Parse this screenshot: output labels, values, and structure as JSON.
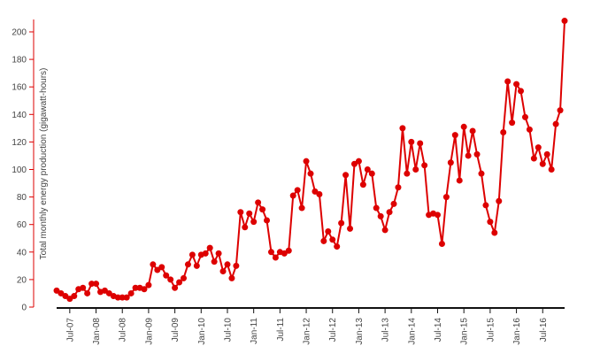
{
  "chart_data": {
    "type": "line",
    "y_label": "Total monthly energy production (gigawatt-hours)",
    "color": "#dd0000",
    "x": [
      "2007-04",
      "2007-05",
      "2007-06",
      "2007-07",
      "2007-08",
      "2007-09",
      "2007-10",
      "2007-11",
      "2007-12",
      "2008-01",
      "2008-02",
      "2008-03",
      "2008-04",
      "2008-05",
      "2008-06",
      "2008-07",
      "2008-08",
      "2008-09",
      "2008-10",
      "2008-11",
      "2008-12",
      "2009-01",
      "2009-02",
      "2009-03",
      "2009-04",
      "2009-05",
      "2009-06",
      "2009-07",
      "2009-08",
      "2009-09",
      "2009-10",
      "2009-11",
      "2009-12",
      "2010-01",
      "2010-02",
      "2010-03",
      "2010-04",
      "2010-05",
      "2010-06",
      "2010-07",
      "2010-08",
      "2010-09",
      "2010-10",
      "2010-11",
      "2010-12",
      "2011-01",
      "2011-02",
      "2011-03",
      "2011-04",
      "2011-05",
      "2011-06",
      "2011-07",
      "2011-08",
      "2011-09",
      "2011-10",
      "2011-11",
      "2011-12",
      "2012-01",
      "2012-02",
      "2012-03",
      "2012-04",
      "2012-05",
      "2012-06",
      "2012-07",
      "2012-08",
      "2012-09",
      "2012-10",
      "2012-11",
      "2012-12",
      "2013-01",
      "2013-02",
      "2013-03",
      "2013-04",
      "2013-05",
      "2013-06",
      "2013-07",
      "2013-08",
      "2013-09",
      "2013-10",
      "2013-11",
      "2013-12",
      "2014-01",
      "2014-02",
      "2014-03",
      "2014-04",
      "2014-05",
      "2014-06",
      "2014-07",
      "2014-08",
      "2014-09",
      "2014-10",
      "2014-11",
      "2014-12",
      "2015-01",
      "2015-02",
      "2015-03",
      "2015-04",
      "2015-05",
      "2015-06",
      "2015-07",
      "2015-08",
      "2015-09",
      "2015-10",
      "2015-11",
      "2015-12",
      "2016-01",
      "2016-02",
      "2016-03",
      "2016-04",
      "2016-05",
      "2016-06",
      "2016-07",
      "2016-08",
      "2016-09",
      "2016-10",
      "2016-11",
      "2016-12"
    ],
    "values": [
      12,
      10,
      8,
      6,
      8,
      13,
      14,
      10,
      17,
      17,
      11,
      12,
      10,
      8,
      7,
      7,
      7,
      10,
      14,
      14,
      13,
      16,
      31,
      27,
      29,
      23,
      20,
      14,
      18,
      21,
      31,
      38,
      30,
      38,
      39,
      43,
      33,
      39,
      26,
      31,
      21,
      30,
      69,
      58,
      68,
      62,
      76,
      71,
      63,
      40,
      36,
      40,
      39,
      41,
      81,
      85,
      72,
      106,
      97,
      84,
      82,
      48,
      55,
      49,
      44,
      61,
      96,
      57,
      104,
      106,
      89,
      100,
      97,
      72,
      66,
      56,
      69,
      75,
      87,
      130,
      97,
      120,
      100,
      119,
      103,
      67,
      68,
      67,
      46,
      80,
      105,
      125,
      92,
      131,
      110,
      128,
      111,
      97,
      74,
      62,
      54,
      77,
      127,
      164,
      134,
      162,
      157,
      138,
      129,
      108,
      116,
      104,
      111,
      100,
      133,
      143,
      208
    ],
    "xlim": [
      "2007-04",
      "2016-12"
    ],
    "xticks": [
      {
        "value": "2007-07",
        "label": "Jul-07"
      },
      {
        "value": "2008-01",
        "label": "Jan-08"
      },
      {
        "value": "2008-07",
        "label": "Jul-08"
      },
      {
        "value": "2009-01",
        "label": "Jan-09"
      },
      {
        "value": "2009-07",
        "label": "Jul-09"
      },
      {
        "value": "2010-01",
        "label": "Jan-10"
      },
      {
        "value": "2010-07",
        "label": "Jul-10"
      },
      {
        "value": "2011-01",
        "label": "Jan-11"
      },
      {
        "value": "2011-07",
        "label": "Jul-11"
      },
      {
        "value": "2012-01",
        "label": "Jan-12"
      },
      {
        "value": "2012-07",
        "label": "Jul-12"
      },
      {
        "value": "2013-01",
        "label": "Jan-13"
      },
      {
        "value": "2013-07",
        "label": "Jul-13"
      },
      {
        "value": "2014-01",
        "label": "Jan-14"
      },
      {
        "value": "2014-07",
        "label": "Jul-14"
      },
      {
        "value": "2015-01",
        "label": "Jan-15"
      },
      {
        "value": "2015-07",
        "label": "Jul-15"
      },
      {
        "value": "2016-01",
        "label": "Jan-16"
      },
      {
        "value": "2016-07",
        "label": "Jul-16"
      }
    ],
    "ylim": [
      0,
      209
    ],
    "yticks": [
      0,
      20,
      40,
      60,
      80,
      100,
      120,
      140,
      160,
      180,
      200
    ]
  }
}
